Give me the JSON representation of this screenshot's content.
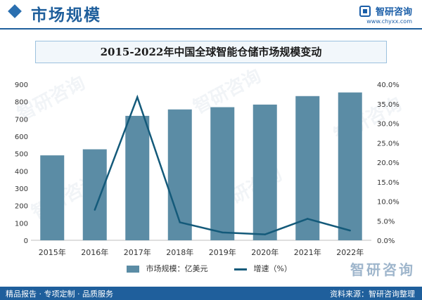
{
  "header": {
    "section_title": "市场规模",
    "brand_name": "智研咨询",
    "brand_url": "www.chyxx.com"
  },
  "watermark": "智研咨询",
  "footer": {
    "left": "精品报告 · 专项定制 · 品质服务",
    "right": "资料来源：智研咨询整理",
    "logo_text": "智研咨询"
  },
  "chart_data": {
    "type": "bar",
    "title": "2015-2022年中国全球智能仓储市场规模变动",
    "categories": [
      "2015年",
      "2016年",
      "2017年",
      "2018年",
      "2019年",
      "2020年",
      "2021年",
      "2022年"
    ],
    "series": [
      {
        "name": "市场规模：亿美元",
        "type": "bar",
        "axis": "left",
        "color": "#5b8ca5",
        "values": [
          490,
          525,
          718,
          755,
          768,
          783,
          832,
          853
        ]
      },
      {
        "name": "增速（%）",
        "type": "line",
        "axis": "right",
        "color": "#145a7a",
        "values": [
          null,
          7.8,
          36.7,
          4.6,
          2.0,
          1.5,
          5.5,
          2.5
        ]
      }
    ],
    "y_left": {
      "range": [
        0,
        900
      ],
      "ticks": [
        "0",
        "100",
        "200",
        "300",
        "400",
        "500",
        "600",
        "700",
        "800",
        "900"
      ]
    },
    "y_right": {
      "range": [
        0,
        40
      ],
      "ticks": [
        "0.0%",
        "5.0%",
        "10.0%",
        "15.0%",
        "20.0%",
        "25.0%",
        "30.0%",
        "35.0%",
        "40.0%"
      ]
    },
    "grid": false,
    "legend_position": "bottom"
  }
}
